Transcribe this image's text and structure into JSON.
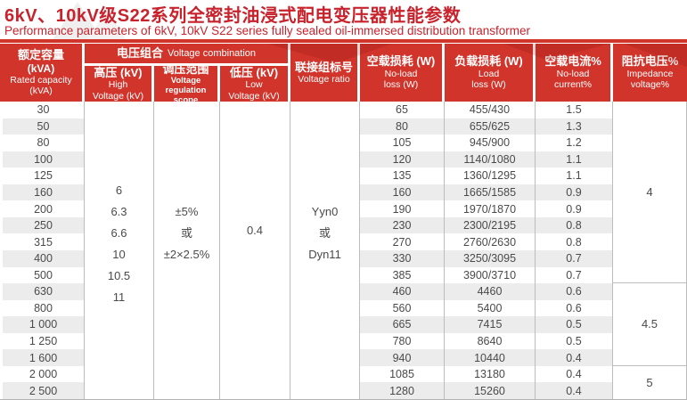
{
  "page": {
    "title": "6kV、10kV级S22系列全密封油浸式配电变压器性能参数",
    "subtitle": "Performance parameters of 6kV, 10kV S22 series fully sealed oil-immersed distribution transformer"
  },
  "colors": {
    "accent_red": "#c8232c",
    "header_red": "#d0342b",
    "header_text": "#ffffff",
    "stripe_gray": "#ececec",
    "grid_line": "#bcbcbc",
    "data_text": "#4a4a4a"
  },
  "table": {
    "header": {
      "rated_capacity": {
        "zh": "额定容量",
        "zh_unit": "(kVA)",
        "en": "Rated capacity",
        "en_unit": "(kVA)"
      },
      "voltage_combination": {
        "zh": "电压组合",
        "en": "Voltage combination"
      },
      "high_voltage": {
        "zh": "高压 (kV)",
        "en1": "High",
        "en2": "Voltage (kV)"
      },
      "regulation": {
        "zh": "调压范围",
        "en1": "Voltage",
        "en2": "regulation scope"
      },
      "low_voltage": {
        "zh": "低压 (kV)",
        "en1": "Low",
        "en2": "Voltage (kV)"
      },
      "vector_group": {
        "zh": "联接组标号",
        "en": "Voltage ratio"
      },
      "no_load_loss": {
        "zh": "空载损耗 (W)",
        "en1": "No-load",
        "en2": "loss (W)"
      },
      "load_loss": {
        "zh": "负载损耗 (W)",
        "en1": "Load",
        "en2": "loss (W)"
      },
      "no_load_current": {
        "zh": "空载电流%",
        "en1": "No-load",
        "en2": "current%"
      },
      "impedance": {
        "zh": "阻抗电压%",
        "en1": "Impedance",
        "en2": "voltage%"
      }
    },
    "merged": {
      "high_voltage_values": [
        "6",
        "6.3",
        "6.6",
        "10",
        "10.5",
        "11"
      ],
      "regulation_values": [
        "±5%",
        "或",
        "±2×2.5%"
      ],
      "low_voltage_value": "0.4",
      "vector_group_values": [
        "Yyn0",
        "或",
        "Dyn11"
      ]
    },
    "impedance_cells": [
      {
        "value": "4"
      },
      {
        "value": "4.5"
      },
      {
        "value": "5"
      }
    ],
    "rows": [
      {
        "capacity": "30",
        "no_load_loss": "65",
        "load_loss": "455/430",
        "no_load_current": "1.5"
      },
      {
        "capacity": "50",
        "no_load_loss": "80",
        "load_loss": "655/625",
        "no_load_current": "1.3"
      },
      {
        "capacity": "80",
        "no_load_loss": "105",
        "load_loss": "945/900",
        "no_load_current": "1.2"
      },
      {
        "capacity": "100",
        "no_load_loss": "120",
        "load_loss": "1140/1080",
        "no_load_current": "1.1"
      },
      {
        "capacity": "125",
        "no_load_loss": "135",
        "load_loss": "1360/1295",
        "no_load_current": "1.1"
      },
      {
        "capacity": "160",
        "no_load_loss": "160",
        "load_loss": "1665/1585",
        "no_load_current": "0.9"
      },
      {
        "capacity": "200",
        "no_load_loss": "190",
        "load_loss": "1970/1870",
        "no_load_current": "0.9"
      },
      {
        "capacity": "250",
        "no_load_loss": "230",
        "load_loss": "2300/2195",
        "no_load_current": "0.8"
      },
      {
        "capacity": "315",
        "no_load_loss": "270",
        "load_loss": "2760/2630",
        "no_load_current": "0.8"
      },
      {
        "capacity": "400",
        "no_load_loss": "330",
        "load_loss": "3250/3095",
        "no_load_current": "0.7"
      },
      {
        "capacity": "500",
        "no_load_loss": "385",
        "load_loss": "3900/3710",
        "no_load_current": "0.7"
      },
      {
        "capacity": "630",
        "no_load_loss": "460",
        "load_loss": "4460",
        "no_load_current": "0.6"
      },
      {
        "capacity": "800",
        "no_load_loss": "560",
        "load_loss": "5400",
        "no_load_current": "0.6"
      },
      {
        "capacity": "1 000",
        "no_load_loss": "665",
        "load_loss": "7415",
        "no_load_current": "0.5"
      },
      {
        "capacity": "1 250",
        "no_load_loss": "780",
        "load_loss": "8640",
        "no_load_current": "0.5"
      },
      {
        "capacity": "1 600",
        "no_load_loss": "940",
        "load_loss": "10440",
        "no_load_current": "0.4"
      },
      {
        "capacity": "2 000",
        "no_load_loss": "1085",
        "load_loss": "13180",
        "no_load_current": "0.4"
      },
      {
        "capacity": "2 500",
        "no_load_loss": "1280",
        "load_loss": "15260",
        "no_load_current": "0.4"
      }
    ]
  }
}
